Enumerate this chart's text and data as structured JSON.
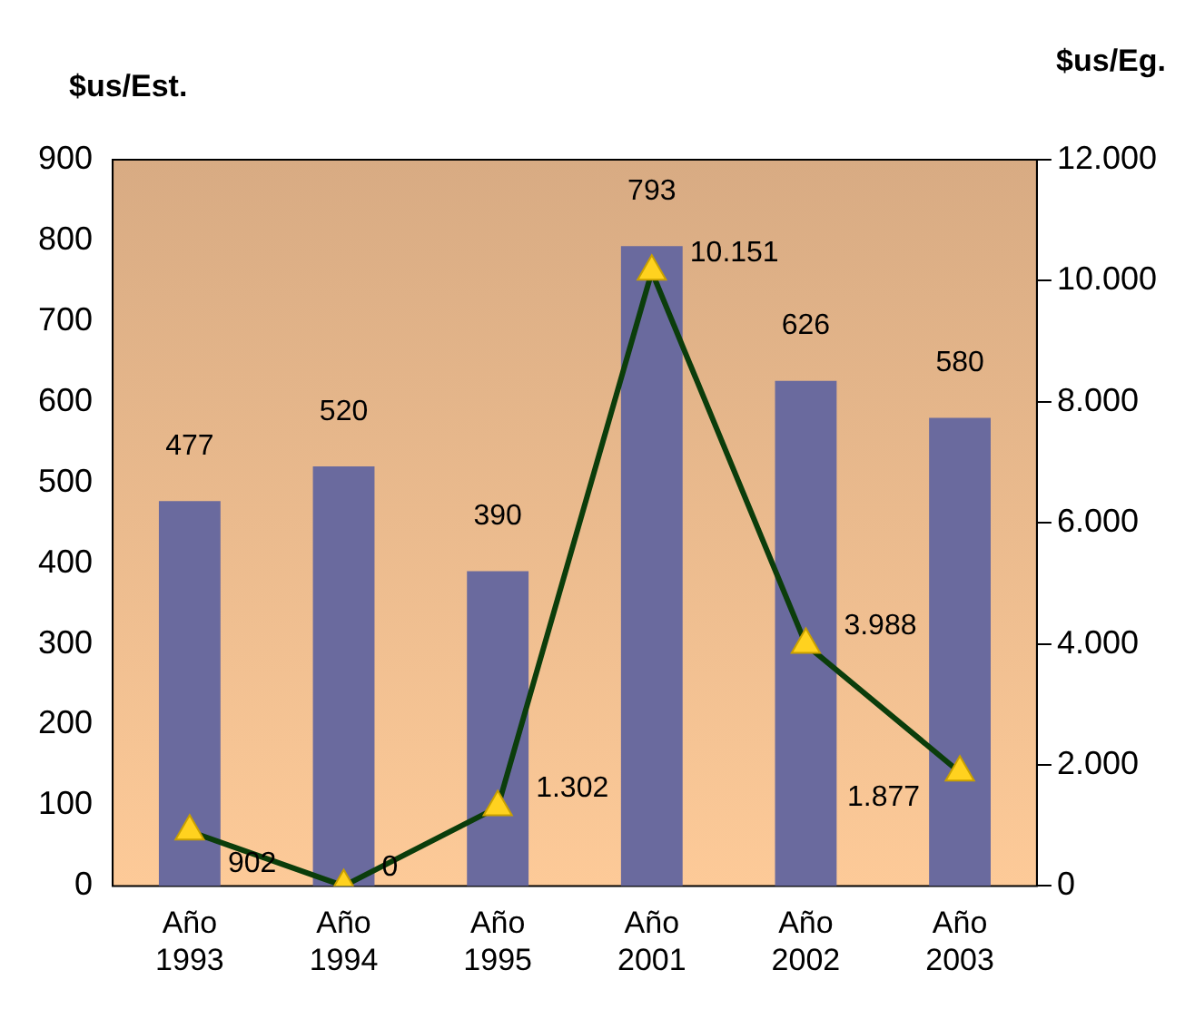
{
  "chart_data": {
    "type": "bar",
    "ylabel": "$us/Est.",
    "y2label": "$us/Eg.",
    "categories": [
      "Año 1993",
      "Año 1994",
      "Año 1995",
      "Año 2001",
      "Año 2002",
      "Año 2003"
    ],
    "series": [
      {
        "color": "#6a6a9e",
        "values": [
          477,
          520,
          390,
          793,
          626,
          580
        ],
        "value_labels": [
          "477",
          "520",
          "390",
          "793",
          "626",
          "580"
        ]
      },
      {
        "type": "line",
        "axis": "y2",
        "color": "#0b3d0b",
        "marker": "triangle",
        "values": [
          902,
          0,
          1302,
          10151,
          3988,
          1877
        ],
        "value_labels": [
          "902",
          "0",
          "1.302",
          "10.151",
          "3.988",
          "1.877"
        ]
      }
    ],
    "ylim": [
      0,
      900
    ],
    "yticks": [
      0,
      100,
      200,
      300,
      400,
      500,
      600,
      700,
      800,
      900
    ],
    "y2lim": [
      0,
      12000
    ],
    "y2ticks": [
      {
        "value": 0,
        "label": "0"
      },
      {
        "value": 2000,
        "label": "2.000"
      },
      {
        "value": 4000,
        "label": "4.000"
      },
      {
        "value": 6000,
        "label": "6.000"
      },
      {
        "value": 8000,
        "label": "8.000"
      },
      {
        "value": 10000,
        "label": "10.000"
      },
      {
        "value": 12000,
        "label": "12.000"
      }
    ],
    "grid": false,
    "legend": false
  }
}
